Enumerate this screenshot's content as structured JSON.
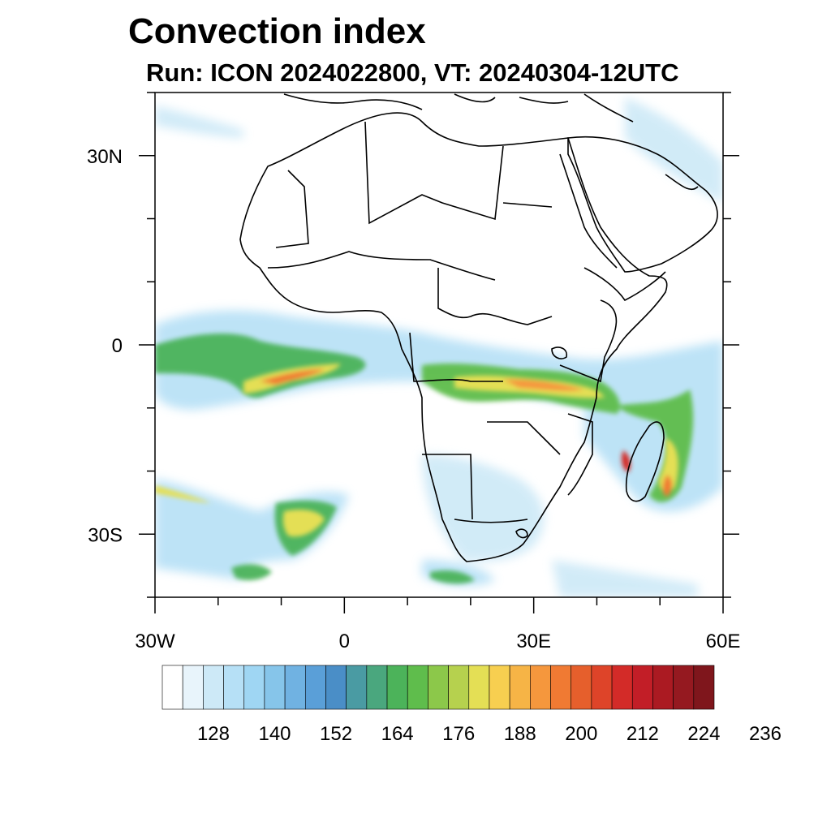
{
  "chart_data": {
    "type": "map",
    "title": "Convection index",
    "subtitle": "Run: ICON 2024022800,  VT: 20240304-12UTC",
    "model": "ICON",
    "run": "2024022800",
    "valid_time": "20240304-12UTC",
    "lon_range": [
      -30,
      60
    ],
    "lat_range": [
      -40,
      40
    ],
    "lon_ticks": [
      {
        "value": -30,
        "label": "30W"
      },
      {
        "value": 0,
        "label": "0"
      },
      {
        "value": 30,
        "label": "30E"
      },
      {
        "value": 60,
        "label": "60E"
      }
    ],
    "lat_ticks": [
      {
        "value": 30,
        "label": "30N"
      },
      {
        "value": 0,
        "label": "0"
      },
      {
        "value": -30,
        "label": "30S"
      }
    ],
    "colorbar": {
      "labels": [
        "128",
        "140",
        "152",
        "164",
        "176",
        "188",
        "200",
        "212",
        "224",
        "236"
      ],
      "colors": [
        "#ffffff",
        "#e8f4fb",
        "#cde9f7",
        "#b6e0f6",
        "#9fd6f3",
        "#86c5ea",
        "#70b2e2",
        "#5a9fd8",
        "#4a8ec7",
        "#4a9ba3",
        "#4aa77e",
        "#4cb35a",
        "#5fbd4c",
        "#8cc84a",
        "#b6d14e",
        "#e4df55",
        "#f7cf50",
        "#f6b446",
        "#f5973d",
        "#f07a33",
        "#e65f2c",
        "#de4429",
        "#d32b28",
        "#c21e27",
        "#ab1a22",
        "#951920",
        "#7f161c"
      ]
    }
  }
}
